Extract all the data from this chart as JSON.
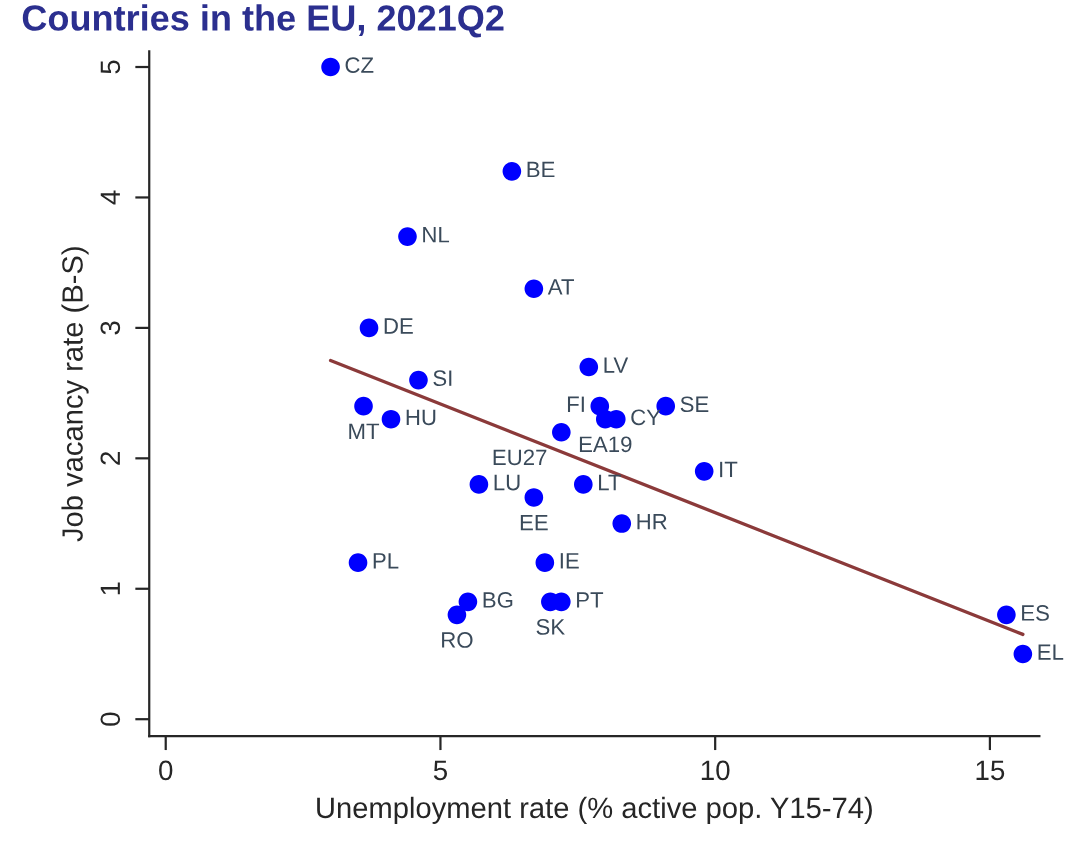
{
  "chart_data": {
    "type": "scatter",
    "title": "Countries in the EU, 2021Q2",
    "xlabel": "Unemployment rate (% active pop. Y15-74)",
    "ylabel": "Job vacancy rate (B-S)",
    "xlim": [
      -0.3,
      15.9
    ],
    "ylim": [
      -0.13,
      5.12
    ],
    "xticks": [
      0,
      5,
      10,
      15
    ],
    "yticks": [
      0,
      1,
      2,
      3,
      4,
      5
    ],
    "grid": false,
    "legend": false,
    "series": [
      {
        "color": "#0000ff",
        "marker": "circle",
        "x": [
          3.0,
          6.3,
          4.4,
          6.7,
          3.7,
          4.6,
          3.6,
          4.1,
          7.7,
          7.9,
          8.0,
          8.2,
          9.1,
          7.2,
          9.8,
          5.7,
          6.7,
          7.6,
          8.3,
          3.5,
          6.9,
          5.5,
          5.3,
          7.0,
          7.2,
          15.3,
          15.6
        ],
        "values": [
          5.0,
          4.2,
          3.7,
          3.3,
          3.0,
          2.6,
          2.4,
          2.3,
          2.7,
          2.4,
          2.3,
          2.3,
          2.4,
          2.2,
          1.9,
          1.8,
          1.7,
          1.8,
          1.5,
          1.2,
          1.2,
          0.9,
          0.8,
          0.9,
          0.9,
          0.8,
          0.5
        ]
      },
      {
        "type": "line",
        "color": "#8b3a3a",
        "x": [
          3.0,
          15.6
        ],
        "values": [
          2.75,
          0.65
        ]
      }
    ],
    "annotations": [
      {
        "text": "CZ",
        "x": 3.0,
        "y": 5.0
      },
      {
        "text": "BE",
        "x": 6.3,
        "y": 4.2
      },
      {
        "text": "NL",
        "x": 4.4,
        "y": 3.7
      },
      {
        "text": "AT",
        "x": 6.7,
        "y": 3.3
      },
      {
        "text": "DE",
        "x": 3.7,
        "y": 3.0
      },
      {
        "text": "SI",
        "x": 4.6,
        "y": 2.6
      },
      {
        "text": "MT",
        "x": 3.6,
        "y": 2.4
      },
      {
        "text": "HU",
        "x": 4.1,
        "y": 2.3
      },
      {
        "text": "LV",
        "x": 7.7,
        "y": 2.7
      },
      {
        "text": "FI",
        "x": 7.9,
        "y": 2.4
      },
      {
        "text": "EA19",
        "x": 8.0,
        "y": 2.3
      },
      {
        "text": "CY",
        "x": 8.2,
        "y": 2.3
      },
      {
        "text": "SE",
        "x": 9.1,
        "y": 2.4
      },
      {
        "text": "EU27",
        "x": 7.2,
        "y": 2.2
      },
      {
        "text": "IT",
        "x": 9.8,
        "y": 1.9
      },
      {
        "text": "LU",
        "x": 5.7,
        "y": 1.8
      },
      {
        "text": "EE",
        "x": 6.7,
        "y": 1.7
      },
      {
        "text": "LT",
        "x": 7.6,
        "y": 1.8
      },
      {
        "text": "HR",
        "x": 8.3,
        "y": 1.5
      },
      {
        "text": "PL",
        "x": 3.5,
        "y": 1.2
      },
      {
        "text": "IE",
        "x": 6.9,
        "y": 1.2
      },
      {
        "text": "BG",
        "x": 5.5,
        "y": 0.9
      },
      {
        "text": "RO",
        "x": 5.3,
        "y": 0.8
      },
      {
        "text": "SK",
        "x": 7.0,
        "y": 0.9
      },
      {
        "text": "PT",
        "x": 7.2,
        "y": 0.9
      },
      {
        "text": "ES",
        "x": 15.3,
        "y": 0.8
      },
      {
        "text": "EL",
        "x": 15.6,
        "y": 0.5
      }
    ]
  }
}
